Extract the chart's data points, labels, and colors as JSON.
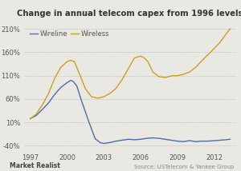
{
  "title": "Change in annual telecom capex from 1996 levels",
  "wireline_x": [
    1997,
    1997.5,
    1998,
    1998.5,
    1999,
    1999.5,
    2000,
    2000.3,
    2000.5,
    2000.8,
    2001.2,
    2001.8,
    2002.3,
    2002.7,
    2003,
    2003.5,
    2004,
    2004.5,
    2005,
    2005.5,
    2006,
    2006.5,
    2007,
    2007.5,
    2008,
    2008.5,
    2009,
    2009.5,
    2010,
    2010.5,
    2011,
    2011.5,
    2012,
    2012.5,
    2013,
    2013.3
  ],
  "wireline_y": [
    18,
    25,
    38,
    52,
    70,
    85,
    95,
    100,
    98,
    88,
    55,
    10,
    -25,
    -33,
    -35,
    -33,
    -30,
    -28,
    -26,
    -27,
    -26,
    -24,
    -23,
    -24,
    -26,
    -28,
    -30,
    -31,
    -29,
    -31,
    -30,
    -30,
    -29,
    -28,
    -27,
    -26
  ],
  "wireless_x": [
    1997,
    1997.5,
    1998,
    1998.5,
    1999,
    1999.5,
    2000,
    2000.3,
    2000.6,
    2001,
    2001.5,
    2002,
    2002.5,
    2003,
    2003.5,
    2004,
    2004.5,
    2005,
    2005.5,
    2006,
    2006.3,
    2006.6,
    2007,
    2007.5,
    2008,
    2008.3,
    2008.6,
    2009,
    2009.5,
    2010,
    2010.5,
    2011,
    2011.5,
    2012,
    2012.5,
    2013,
    2013.3
  ],
  "wireless_y": [
    18,
    28,
    48,
    72,
    105,
    128,
    140,
    143,
    140,
    115,
    82,
    65,
    62,
    65,
    72,
    83,
    102,
    125,
    148,
    152,
    148,
    140,
    118,
    108,
    106,
    108,
    110,
    110,
    113,
    118,
    128,
    142,
    155,
    168,
    182,
    200,
    210
  ],
  "wireline_color": "#4a6fa5",
  "wireless_color": "#c8a020",
  "background_color": "#eae8e2",
  "yticks": [
    -40,
    10,
    60,
    110,
    160,
    210
  ],
  "ytick_labels": [
    "-40%",
    "10%",
    "60%",
    "110%",
    "160%",
    "210%"
  ],
  "xticks": [
    1997,
    2000,
    2003,
    2006,
    2009,
    2012
  ],
  "ylim": [
    -50,
    228
  ],
  "xlim": [
    1996.5,
    2013.8
  ],
  "legend_labels": [
    "Wireline",
    "Wireless"
  ],
  "footer_left": "Market Realist",
  "footer_right": "Source: USTelecom & Yankee Group",
  "title_fontsize": 7.2,
  "tick_fontsize": 6,
  "legend_fontsize": 6
}
